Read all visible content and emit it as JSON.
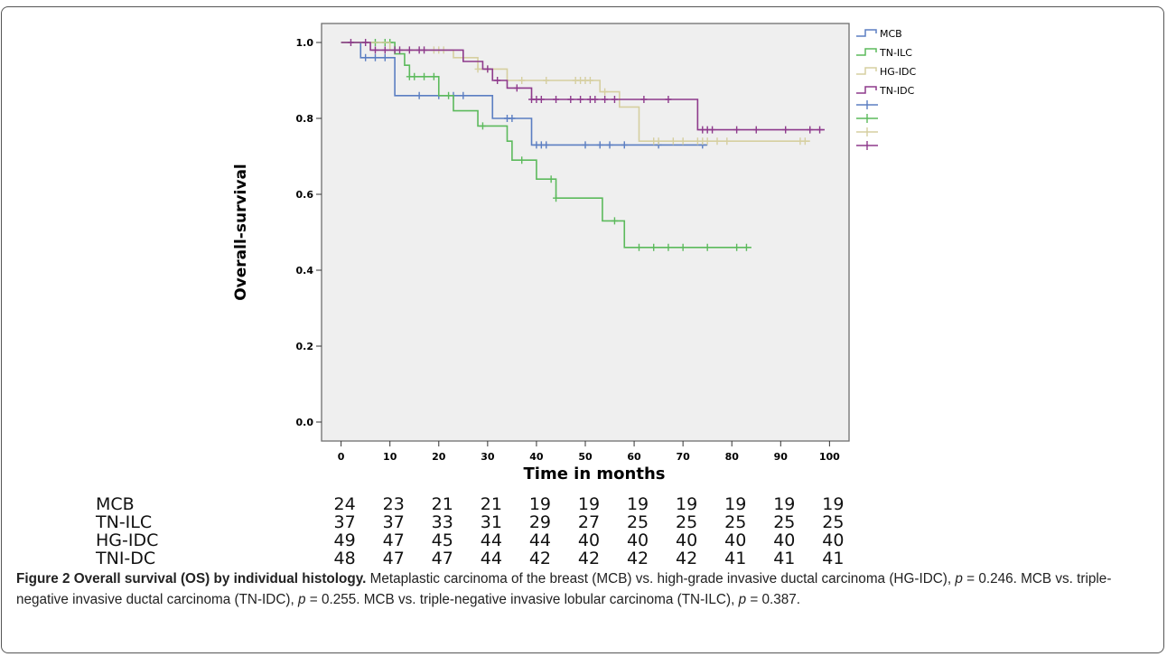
{
  "chart_data": {
    "type": "line",
    "subtype": "kaplan-meier",
    "ylabel": "Overall-survival",
    "xlabel": "Time in months",
    "xlim": [
      -4,
      104
    ],
    "ylim": [
      -0.05,
      1.05
    ],
    "x_ticks": [
      0,
      10,
      20,
      30,
      40,
      50,
      60,
      70,
      80,
      90,
      100
    ],
    "y_ticks": [
      0.0,
      0.2,
      0.4,
      0.6,
      0.8,
      1.0
    ],
    "y_tick_labels": [
      "0.0",
      "0.2",
      "0.4",
      "0.6",
      "0.8",
      "1.0"
    ],
    "legend_position": "right",
    "series": [
      {
        "name": "MCB",
        "color": "#5b7ec2",
        "steps": [
          [
            0,
            1.0
          ],
          [
            4,
            0.96
          ],
          [
            10,
            0.96
          ],
          [
            11,
            0.86
          ],
          [
            30,
            0.86
          ],
          [
            31,
            0.8
          ],
          [
            36,
            0.8
          ],
          [
            39,
            0.73
          ],
          [
            75,
            0.73
          ]
        ],
        "censor": [
          [
            5,
            0.96
          ],
          [
            7,
            0.96
          ],
          [
            9,
            0.96
          ],
          [
            16,
            0.86
          ],
          [
            20,
            0.86
          ],
          [
            23,
            0.86
          ],
          [
            25,
            0.86
          ],
          [
            34,
            0.8
          ],
          [
            35,
            0.8
          ],
          [
            40,
            0.73
          ],
          [
            41,
            0.73
          ],
          [
            42,
            0.73
          ],
          [
            50,
            0.73
          ],
          [
            53,
            0.73
          ],
          [
            55,
            0.73
          ],
          [
            58,
            0.73
          ],
          [
            65,
            0.73
          ],
          [
            74,
            0.73
          ]
        ]
      },
      {
        "name": "TN-ILC",
        "color": "#5cba5c",
        "steps": [
          [
            0,
            1.0
          ],
          [
            10,
            1.0
          ],
          [
            11,
            0.97
          ],
          [
            13,
            0.94
          ],
          [
            14,
            0.91
          ],
          [
            19,
            0.91
          ],
          [
            20,
            0.86
          ],
          [
            23,
            0.82
          ],
          [
            27,
            0.82
          ],
          [
            28,
            0.78
          ],
          [
            33,
            0.78
          ],
          [
            34,
            0.74
          ],
          [
            35,
            0.69
          ],
          [
            39,
            0.69
          ],
          [
            40,
            0.64
          ],
          [
            43,
            0.64
          ],
          [
            44,
            0.59
          ],
          [
            53,
            0.59
          ],
          [
            53.5,
            0.53
          ],
          [
            57,
            0.53
          ],
          [
            58,
            0.46
          ],
          [
            84,
            0.46
          ]
        ],
        "censor": [
          [
            7,
            1.0
          ],
          [
            9,
            1.0
          ],
          [
            10,
            1.0
          ],
          [
            14,
            0.91
          ],
          [
            15,
            0.91
          ],
          [
            17,
            0.91
          ],
          [
            19,
            0.91
          ],
          [
            22,
            0.86
          ],
          [
            29,
            0.78
          ],
          [
            37,
            0.69
          ],
          [
            43,
            0.64
          ],
          [
            44,
            0.59
          ],
          [
            56,
            0.53
          ],
          [
            61,
            0.46
          ],
          [
            64,
            0.46
          ],
          [
            67,
            0.46
          ],
          [
            70,
            0.46
          ],
          [
            75,
            0.46
          ],
          [
            81,
            0.46
          ],
          [
            83,
            0.46
          ]
        ]
      },
      {
        "name": "HG-IDC",
        "color": "#d6cfa0",
        "steps": [
          [
            0,
            1.0
          ],
          [
            9,
            1.0
          ],
          [
            10,
            0.98
          ],
          [
            22,
            0.98
          ],
          [
            23,
            0.96
          ],
          [
            28,
            0.93
          ],
          [
            33,
            0.93
          ],
          [
            34,
            0.9
          ],
          [
            52,
            0.9
          ],
          [
            53,
            0.87
          ],
          [
            56,
            0.87
          ],
          [
            57,
            0.83
          ],
          [
            60,
            0.83
          ],
          [
            61,
            0.74
          ],
          [
            96,
            0.74
          ]
        ],
        "censor": [
          [
            19,
            0.98
          ],
          [
            20,
            0.98
          ],
          [
            21,
            0.98
          ],
          [
            28,
            0.93
          ],
          [
            30,
            0.93
          ],
          [
            37,
            0.9
          ],
          [
            42,
            0.9
          ],
          [
            48,
            0.9
          ],
          [
            49,
            0.9
          ],
          [
            50,
            0.9
          ],
          [
            51,
            0.9
          ],
          [
            54,
            0.87
          ],
          [
            64,
            0.74
          ],
          [
            65,
            0.74
          ],
          [
            68,
            0.74
          ],
          [
            70,
            0.74
          ],
          [
            73,
            0.74
          ],
          [
            74,
            0.74
          ],
          [
            75,
            0.74
          ],
          [
            77,
            0.74
          ],
          [
            79,
            0.74
          ],
          [
            94,
            0.74
          ],
          [
            95,
            0.74
          ]
        ]
      },
      {
        "name": "TN-IDC",
        "color": "#8e3a8c",
        "steps": [
          [
            0,
            1.0
          ],
          [
            5,
            1.0
          ],
          [
            6,
            0.98
          ],
          [
            24,
            0.98
          ],
          [
            25,
            0.95
          ],
          [
            29,
            0.93
          ],
          [
            31,
            0.9
          ],
          [
            33,
            0.9
          ],
          [
            34,
            0.88
          ],
          [
            38,
            0.88
          ],
          [
            39,
            0.85
          ],
          [
            72,
            0.85
          ],
          [
            73,
            0.77
          ],
          [
            99,
            0.77
          ]
        ],
        "censor": [
          [
            2,
            1.0
          ],
          [
            5,
            1.0
          ],
          [
            7,
            0.98
          ],
          [
            9,
            0.98
          ],
          [
            11,
            0.98
          ],
          [
            12,
            0.98
          ],
          [
            14,
            0.98
          ],
          [
            16,
            0.98
          ],
          [
            17,
            0.98
          ],
          [
            30,
            0.93
          ],
          [
            32,
            0.9
          ],
          [
            36,
            0.88
          ],
          [
            39,
            0.85
          ],
          [
            40,
            0.85
          ],
          [
            41,
            0.85
          ],
          [
            44,
            0.85
          ],
          [
            47,
            0.85
          ],
          [
            49,
            0.85
          ],
          [
            51,
            0.85
          ],
          [
            52,
            0.85
          ],
          [
            54,
            0.85
          ],
          [
            56,
            0.85
          ],
          [
            62,
            0.85
          ],
          [
            67,
            0.85
          ],
          [
            74,
            0.77
          ],
          [
            75,
            0.77
          ],
          [
            76,
            0.77
          ],
          [
            81,
            0.77
          ],
          [
            85,
            0.77
          ],
          [
            91,
            0.77
          ],
          [
            96,
            0.77
          ],
          [
            98,
            0.77
          ]
        ]
      }
    ]
  },
  "risk_table": {
    "rows": [
      {
        "label": "MCB",
        "values": [
          "24",
          "23",
          "21",
          "21",
          "19",
          "19",
          "19",
          "19",
          "19",
          "19",
          "19"
        ]
      },
      {
        "label": "TN-ILC",
        "values": [
          "37",
          "37",
          "33",
          "31",
          "29",
          "27",
          "25",
          "25",
          "25",
          "25",
          "25"
        ]
      },
      {
        "label": "HG-IDC",
        "values": [
          "49",
          "47",
          "45",
          "44",
          "44",
          "40",
          "40",
          "40",
          "40",
          "40",
          "40"
        ]
      },
      {
        "label": "TNI-DC",
        "values": [
          "48",
          "47",
          "47",
          "44",
          "42",
          "42",
          "42",
          "42",
          "41",
          "41",
          "41"
        ]
      }
    ]
  },
  "caption": {
    "title": "Figure 2 Overall survival (OS) by individual histology.",
    "p1": " Metaplastic carcinoma of the breast (MCB) vs. high-grade invasive ductal carcinoma (HG-IDC), ",
    "p_sym": "p",
    "v1": " = 0.246. MCB vs. triple-negative invasive ductal carcinoma (TN-IDC), ",
    "v2": " = 0.255. MCB vs. triple-negative invasive lobular carcinoma (TN-ILC), ",
    "v3": " = 0.387."
  }
}
